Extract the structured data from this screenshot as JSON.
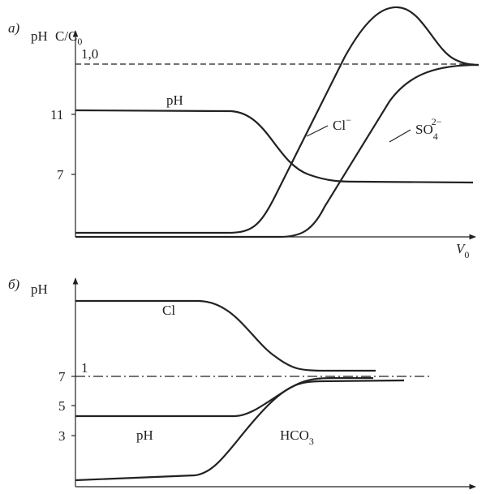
{
  "panel_a": {
    "label": "а)",
    "axis_ph": "pH",
    "axis_conc": "C/C",
    "axis_conc_sub": "0",
    "tick_conc": "1,0",
    "tick_ph": [
      "11",
      "7"
    ],
    "curve_ph": "pH",
    "curve_cl": "Cl",
    "curve_cl_sup": "−",
    "curve_so4": "SO",
    "curve_so4_sub": "4",
    "curve_so4_sup": "2−",
    "axis_x": "V",
    "axis_x_sub": "0"
  },
  "panel_b": {
    "label": "б)",
    "axis_ph": "pH",
    "tick_conc": "1",
    "tick_ph": [
      "7",
      "5",
      "3"
    ],
    "curve_cl": "Cl",
    "curve_ph": "pH",
    "curve_hco3": "HCO",
    "curve_hco3_sub": "3"
  }
}
